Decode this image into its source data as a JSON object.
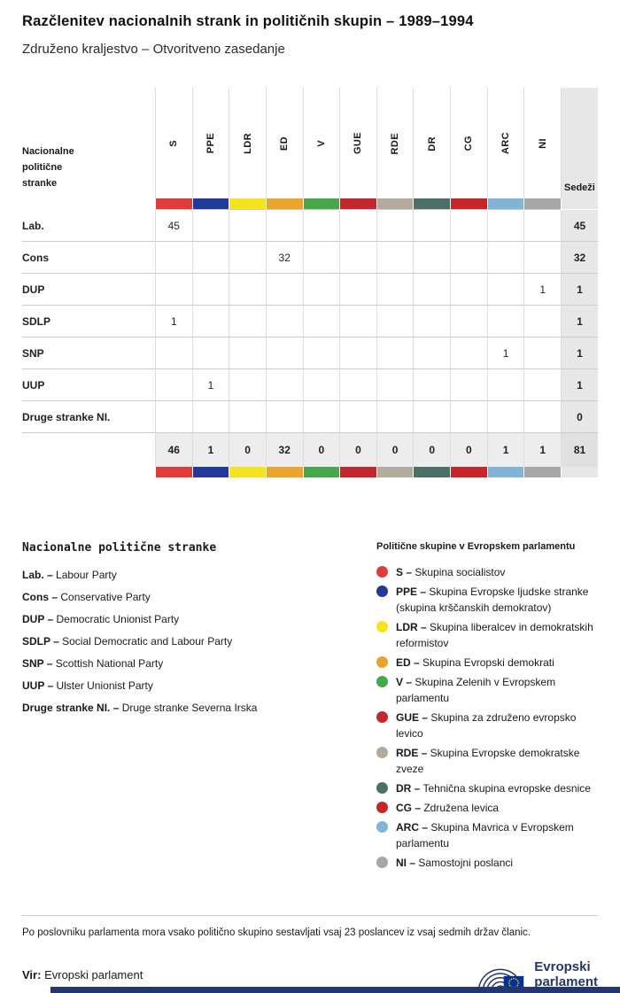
{
  "chart_data": {
    "type": "table",
    "title": "Razčlenitev nacionalnih strank in političnih skupin – 1989–1994",
    "subtitle": "Združeno kraljestvo – Otvoritveno zasedanje",
    "corner_label": "Nacionalne politične stranke",
    "seats_label": "Sedeži",
    "group_columns": [
      {
        "code": "S",
        "color": "#e03c3c"
      },
      {
        "code": "PPE",
        "color": "#23399a"
      },
      {
        "code": "LDR",
        "color": "#f3e41d"
      },
      {
        "code": "ED",
        "color": "#eaa42c"
      },
      {
        "code": "V",
        "color": "#46a84a"
      },
      {
        "code": "GUE",
        "color": "#c2272d"
      },
      {
        "code": "RDE",
        "color": "#b3aa9d"
      },
      {
        "code": "DR",
        "color": "#4c6f67"
      },
      {
        "code": "CG",
        "color": "#c4262b"
      },
      {
        "code": "ARC",
        "color": "#82b4d6"
      },
      {
        "code": "NI",
        "color": "#a7a7a7"
      }
    ],
    "rows": [
      {
        "party": "Lab.",
        "values": [
          "45",
          "",
          "",
          "",
          "",
          "",
          "",
          "",
          "",
          "",
          ""
        ],
        "seats": "45"
      },
      {
        "party": "Cons",
        "values": [
          "",
          "",
          "",
          "32",
          "",
          "",
          "",
          "",
          "",
          "",
          ""
        ],
        "seats": "32"
      },
      {
        "party": "DUP",
        "values": [
          "",
          "",
          "",
          "",
          "",
          "",
          "",
          "",
          "",
          "",
          "1"
        ],
        "seats": "1"
      },
      {
        "party": "SDLP",
        "values": [
          "1",
          "",
          "",
          "",
          "",
          "",
          "",
          "",
          "",
          "",
          ""
        ],
        "seats": "1"
      },
      {
        "party": "SNP",
        "values": [
          "",
          "",
          "",
          "",
          "",
          "",
          "",
          "",
          "",
          "1",
          ""
        ],
        "seats": "1"
      },
      {
        "party": "UUP",
        "values": [
          "",
          "1",
          "",
          "",
          "",
          "",
          "",
          "",
          "",
          "",
          ""
        ],
        "seats": "1"
      },
      {
        "party": "Druge stranke NI.",
        "values": [
          "",
          "",
          "",
          "",
          "",
          "",
          "",
          "",
          "",
          "",
          ""
        ],
        "seats": "0"
      }
    ],
    "totals": {
      "values": [
        "46",
        "1",
        "0",
        "32",
        "0",
        "0",
        "0",
        "0",
        "0",
        "1",
        "1"
      ],
      "seats": "81"
    }
  },
  "legend_parties": {
    "heading": "Nacionalne politične stranke",
    "items": [
      {
        "abbr": "Lab. –",
        "name": "Labour Party"
      },
      {
        "abbr": "Cons –",
        "name": "Conservative Party"
      },
      {
        "abbr": "DUP –",
        "name": "Democratic Unionist Party"
      },
      {
        "abbr": "SDLP –",
        "name": "Social Democratic and Labour Party"
      },
      {
        "abbr": "SNP –",
        "name": "Scottish National Party"
      },
      {
        "abbr": "UUP –",
        "name": "Ulster Unionist Party"
      },
      {
        "abbr": "Druge stranke NI. –",
        "name": "Druge stranke Severna Irska"
      }
    ]
  },
  "legend_groups": {
    "heading": "Politične skupine v Evropskem parlamentu",
    "items": [
      {
        "code": "S –",
        "name": "Skupina socialistov",
        "color": "#e03c3c"
      },
      {
        "code": "PPE –",
        "name": "Skupina Evropske ljudske stranke (skupina krščanskih demokratov)",
        "color": "#23399a"
      },
      {
        "code": "LDR –",
        "name": "Skupina liberalcev in demokratskih reformistov",
        "color": "#f3e41d"
      },
      {
        "code": "ED –",
        "name": "Skupina Evropski demokrati",
        "color": "#eaa42c"
      },
      {
        "code": "V –",
        "name": "Skupina Zelenih v Evropskem parlamentu",
        "color": "#46a84a"
      },
      {
        "code": "GUE –",
        "name": "Skupina za združeno evropsko levico",
        "color": "#c2272d"
      },
      {
        "code": "RDE –",
        "name": "Skupina Evropske demokratske zveze",
        "color": "#b3aa9d"
      },
      {
        "code": "DR –",
        "name": "Tehnična skupina evropske desnice",
        "color": "#4c6f67"
      },
      {
        "code": "CG –",
        "name": "Združena levica",
        "color": "#c4262b"
      },
      {
        "code": "ARC –",
        "name": "Skupina Mavrica v Evropskem parlamentu",
        "color": "#82b4d6"
      },
      {
        "code": "NI –",
        "name": "Samostojni poslanci",
        "color": "#a7a7a7"
      }
    ]
  },
  "footnote": "Po poslovniku parlamenta mora vsako politično skupino sestavljati vsaj 23 poslancev iz vsaj sedmih držav članic.",
  "source": {
    "label": "Vir:",
    "name": "Evropski parlament"
  },
  "logo": {
    "line1": "Evropski",
    "line2": "parlament"
  },
  "colors": {
    "accent_navy": "#24356f",
    "flag_blue": "#003399",
    "star_yellow": "#ffcc00"
  }
}
